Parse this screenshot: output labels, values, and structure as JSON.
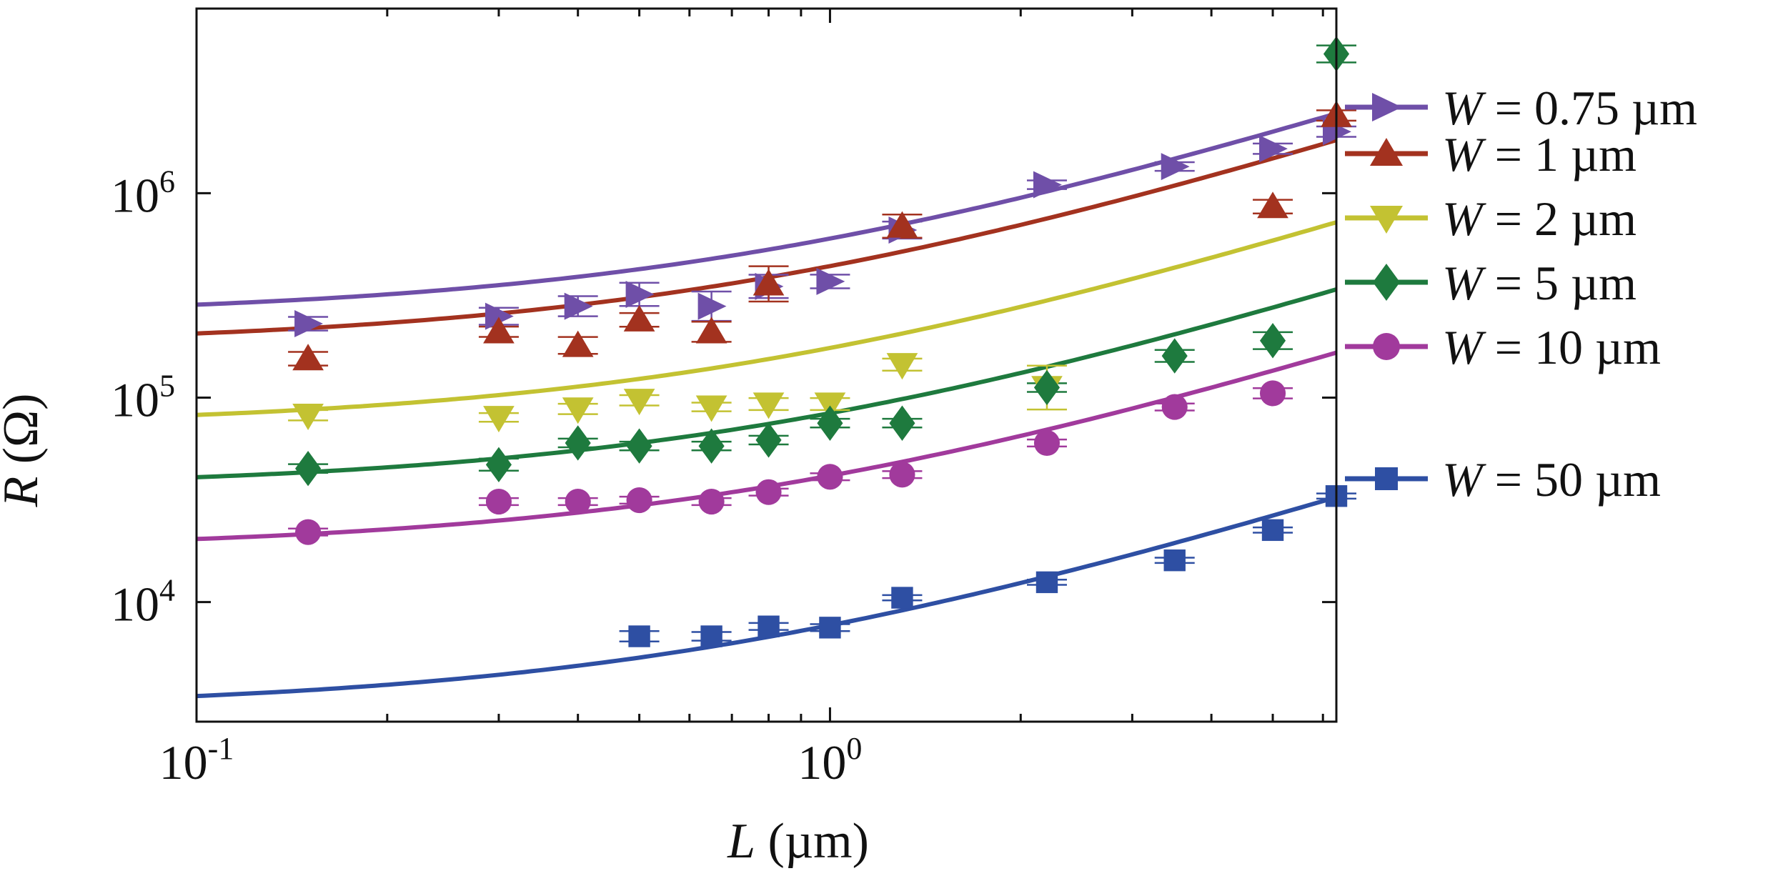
{
  "chart_data": {
    "type": "scatter",
    "title": "",
    "xlabel_var": "L",
    "xlabel_unit": " (µm)",
    "ylabel_var": "R",
    "ylabel_unit": " (Ω)",
    "x_scale": "log",
    "y_scale": "log",
    "xlim": [
      0.1,
      6.3
    ],
    "ylim": [
      2600,
      8000000
    ],
    "x_ticks": [
      {
        "value": 0.1,
        "base": "10",
        "exp": "-1"
      },
      {
        "value": 1,
        "base": "10",
        "exp": "0"
      }
    ],
    "y_ticks": [
      {
        "value": 10000,
        "base": "10",
        "exp": "4"
      },
      {
        "value": 100000,
        "base": "10",
        "exp": "5"
      },
      {
        "value": 1000000,
        "base": "10",
        "exp": "6"
      }
    ],
    "legend_position": "right-outside",
    "series": [
      {
        "name": "W = 0.75 µm",
        "legend_var": "W",
        "legend_rest": " = 0.75 µm",
        "color": "#6f4fa8",
        "marker": "triangle-right",
        "x": [
          0.15,
          0.3,
          0.4,
          0.5,
          0.65,
          0.8,
          1.0,
          1.3,
          2.2,
          3.5,
          5.0,
          6.3
        ],
        "y": [
          230000,
          250000,
          280000,
          320000,
          280000,
          350000,
          370000,
          660000,
          1100000,
          1350000,
          1650000,
          2000000
        ],
        "err": [
          0.08,
          0.1,
          0.12,
          0.14,
          0.18,
          0.14,
          0.08,
          0.1,
          0.05,
          0.05,
          0.06,
          0.06
        ],
        "fit": {
          "a": 250000,
          "b": 350000
        }
      },
      {
        "name": "W = 1 µm",
        "legend_var": "W",
        "legend_rest": " = 1 µm",
        "color": "#a3321f",
        "marker": "triangle-up",
        "x": [
          0.15,
          0.3,
          0.4,
          0.5,
          0.65,
          0.8,
          1.3,
          5.0,
          6.3
        ],
        "y": [
          155000,
          210000,
          180000,
          240000,
          210000,
          360000,
          690000,
          860000,
          2400000
        ],
        "err": [
          0.08,
          0.06,
          0.1,
          0.08,
          0.12,
          0.22,
          0.14,
          0.08,
          0.06
        ],
        "fit": {
          "a": 180000,
          "b": 260000
        }
      },
      {
        "name": "W = 2 µm",
        "legend_var": "W",
        "legend_rest": " = 2 µm",
        "color": "#c3c232",
        "marker": "triangle-down",
        "x": [
          0.15,
          0.3,
          0.4,
          0.5,
          0.65,
          0.8,
          1.0,
          1.3,
          2.2
        ],
        "y": [
          82000,
          80000,
          88000,
          97000,
          90000,
          93000,
          93000,
          145000,
          112000
        ],
        "err": [
          0.06,
          0.05,
          0.06,
          0.06,
          0.05,
          0.07,
          0.07,
          0.07,
          0.28
        ],
        "fit": {
          "a": 72000,
          "b": 103000
        }
      },
      {
        "name": "W = 5 µm",
        "legend_var": "W",
        "legend_rest": " = 5 µm",
        "color": "#1e7a3e",
        "marker": "diamond",
        "x": [
          0.15,
          0.3,
          0.4,
          0.5,
          0.65,
          0.8,
          1.0,
          1.3,
          2.2,
          3.5,
          5.0,
          6.3
        ],
        "y": [
          45000,
          47000,
          60000,
          58000,
          58000,
          62000,
          75000,
          75000,
          112000,
          160000,
          190000,
          4800000
        ],
        "err": [
          0.05,
          0.07,
          0.05,
          0.05,
          0.05,
          0.05,
          0.05,
          0.05,
          0.05,
          0.07,
          0.1,
          0.1
        ],
        "fit": {
          "a": 36000,
          "b": 48000
        }
      },
      {
        "name": "W = 10 µm",
        "legend_var": "W",
        "legend_rest": " = 10 µm",
        "color": "#a13a9c",
        "marker": "circle",
        "x": [
          0.15,
          0.3,
          0.4,
          0.5,
          0.65,
          0.8,
          1.0,
          1.3,
          2.2,
          3.5,
          5.0
        ],
        "y": [
          22000,
          31000,
          31000,
          31500,
          31000,
          34500,
          41000,
          42000,
          60000,
          90000,
          105000
        ],
        "err": [
          0.04,
          0.04,
          0.04,
          0.04,
          0.04,
          0.04,
          0.04,
          0.04,
          0.04,
          0.04,
          0.06
        ],
        "fit": {
          "a": 18000,
          "b": 23500
        }
      },
      {
        "name": "W = 50 µm",
        "legend_var": "W",
        "legend_rest": " = 50 µm",
        "color": "#2e4fa3",
        "marker": "square",
        "x": [
          0.5,
          0.65,
          0.8,
          1.0,
          1.3,
          2.2,
          3.5,
          5.0,
          6.3
        ],
        "y": [
          6800,
          6800,
          7600,
          7500,
          10500,
          12500,
          16000,
          22500,
          33000
        ],
        "err": [
          0.06,
          0.05,
          0.04,
          0.04,
          0.03,
          0.03,
          0.03,
          0.03,
          0.03
        ],
        "fit": {
          "a": 3000,
          "b": 4700
        }
      }
    ]
  }
}
